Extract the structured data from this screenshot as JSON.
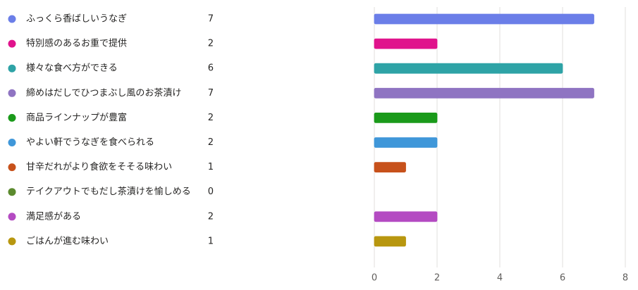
{
  "chart_data": {
    "type": "bar",
    "orientation": "horizontal",
    "categories": [
      "ふっくら香ばしいうなぎ",
      "特別感のあるお重で提供",
      "様々な食べ方ができる",
      "締めはだしでひつまぶし風のお茶漬け",
      "商品ラインナップが豊富",
      "やよい軒でうなぎを食べられる",
      "甘辛だれがより食欲をそそる味わい",
      "テイクアウトでもだし茶漬けを愉しめる",
      "満足感がある",
      "ごはんが進む味わい"
    ],
    "values": [
      7,
      2,
      6,
      7,
      2,
      2,
      1,
      0,
      2,
      1
    ],
    "colors": [
      "#6b7ee8",
      "#e0138c",
      "#2ea3a6",
      "#8f74c2",
      "#1a9a1a",
      "#3f97d9",
      "#c7511b",
      "#5b8a2e",
      "#b44bc2",
      "#b8970f"
    ],
    "xlim": [
      0,
      8
    ],
    "xticks": [
      0,
      2,
      4,
      6,
      8
    ],
    "grid": true
  }
}
